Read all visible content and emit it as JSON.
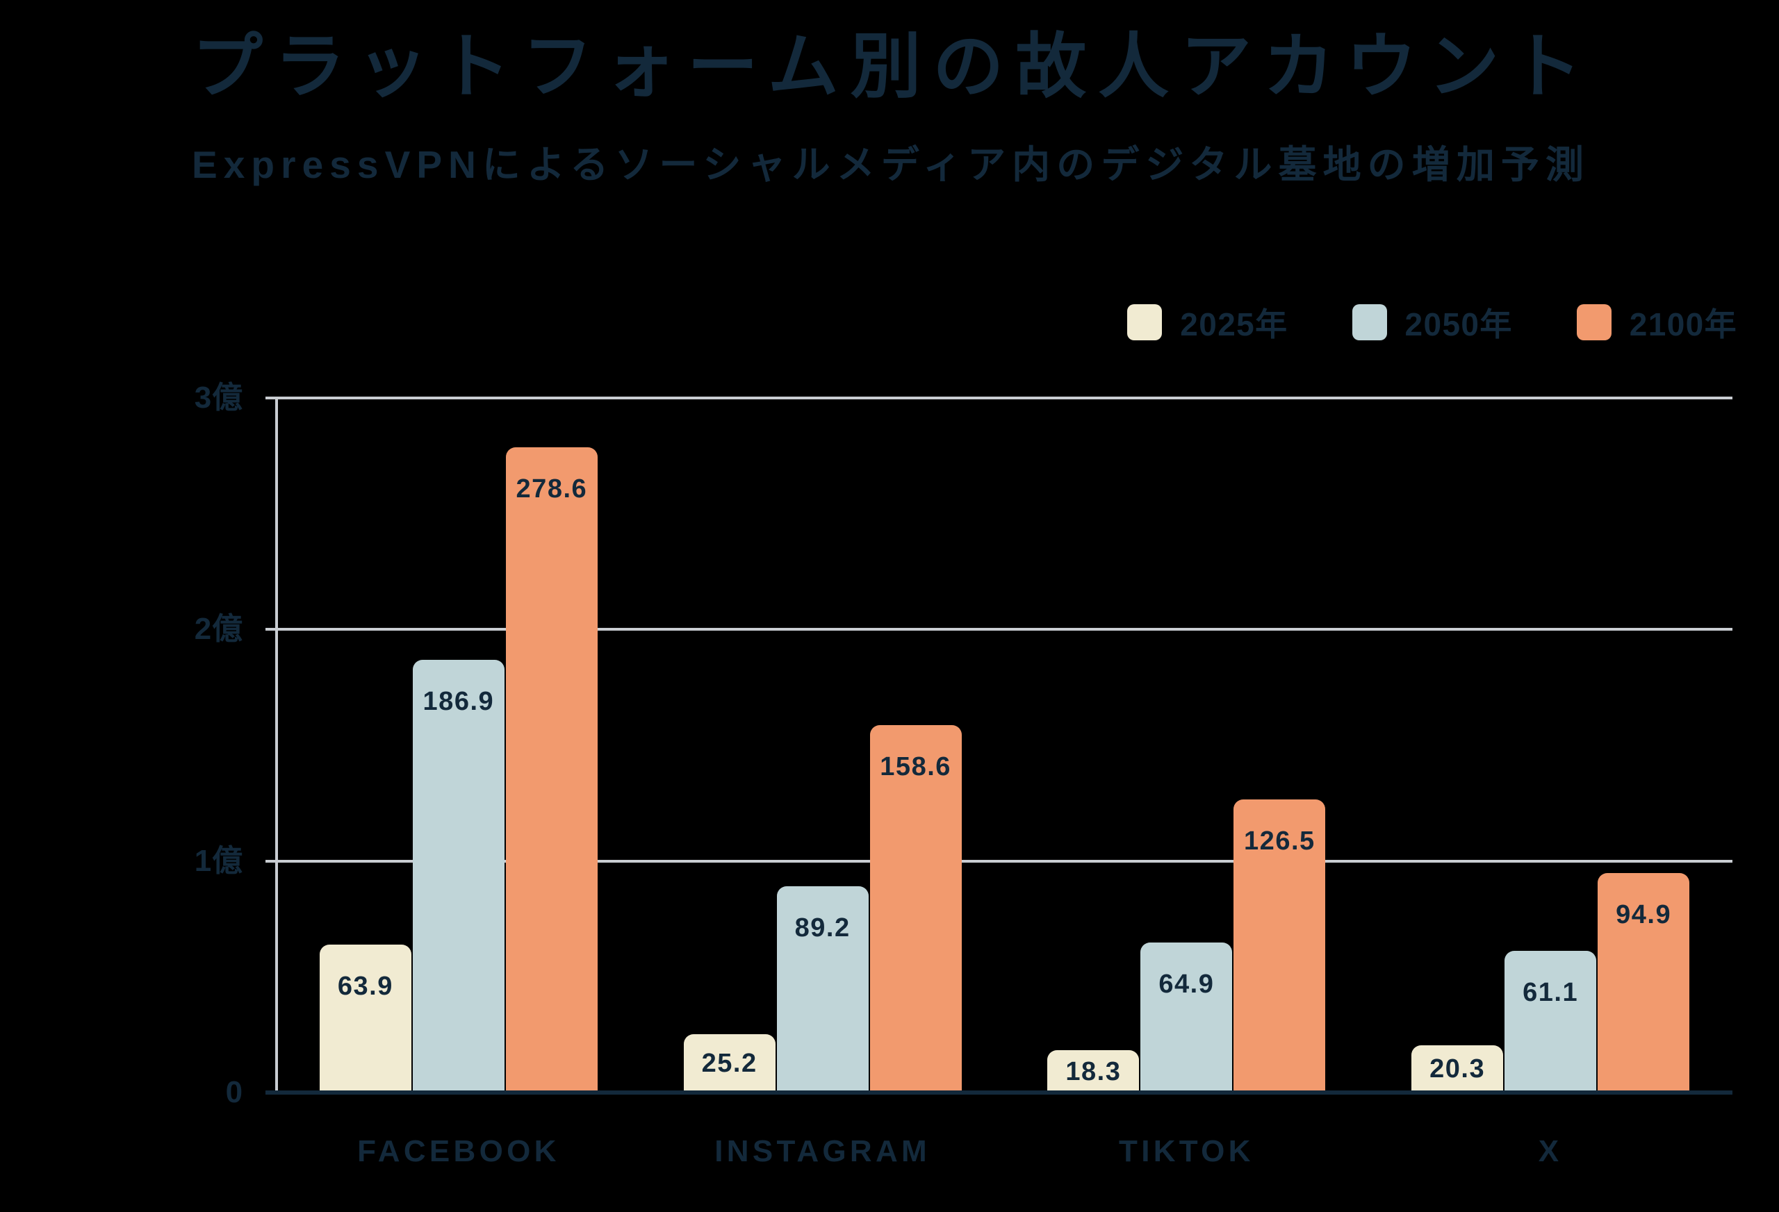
{
  "page": {
    "background": "#000000",
    "text_color": "#13293B",
    "gridline_color": "#C9CDD2",
    "baseline_color": "#13293B"
  },
  "header": {
    "title": "プラットフォーム別の故人アカウント",
    "subtitle": "ExpressVPNによるソーシャルメディア内のデジタル墓地の増加予測"
  },
  "legend": {
    "items": [
      {
        "label": "2025年",
        "color": "#F1EBD2"
      },
      {
        "label": "2050年",
        "color": "#C0D5D8"
      },
      {
        "label": "2100年",
        "color": "#F29A6E"
      }
    ]
  },
  "chart_data": {
    "type": "bar",
    "title": "プラットフォーム別の故人アカウント",
    "subtitle": "ExpressVPNによるソーシャルメディア内のデジタル墓地の増加予測",
    "categories": [
      "FACEBOOK",
      "INSTAGRAM",
      "TIKTOK",
      "X"
    ],
    "series": [
      {
        "name": "2025年",
        "color": "#F1EBD2",
        "values": [
          63.9,
          25.2,
          18.3,
          20.3
        ]
      },
      {
        "name": "2050年",
        "color": "#C0D5D8",
        "values": [
          186.9,
          89.2,
          64.9,
          61.1
        ]
      },
      {
        "name": "2100年",
        "color": "#F29A6E",
        "values": [
          278.6,
          158.6,
          126.5,
          94.9
        ]
      }
    ],
    "y_axis": {
      "max": 300,
      "ticks": [
        {
          "value": 0,
          "label": "0"
        },
        {
          "value": 100,
          "label": "1億"
        },
        {
          "value": 200,
          "label": "2億"
        },
        {
          "value": 300,
          "label": "3億"
        }
      ]
    },
    "grid": "horizontal",
    "legend_position": "top-right",
    "value_labels": "inside-top"
  }
}
